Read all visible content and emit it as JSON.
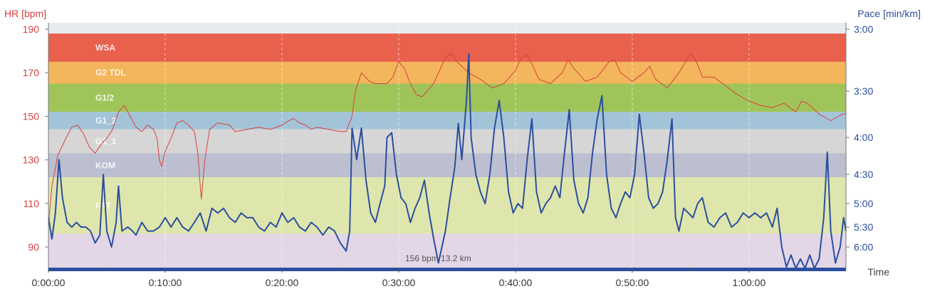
{
  "chart_data": {
    "type": "line",
    "left_axis": {
      "title": "HR [bpm]",
      "ticks": [
        90,
        110,
        130,
        150,
        170,
        190
      ],
      "ylim": [
        80,
        192
      ],
      "color": "#d94040"
    },
    "right_axis": {
      "title": "Pace [min/km]",
      "ticks": [
        {
          "label": "3:00",
          "min_per_km": 3.0
        },
        {
          "label": "3:30",
          "min_per_km": 3.5
        },
        {
          "label": "4:00",
          "min_per_km": 4.0
        },
        {
          "label": "4:30",
          "min_per_km": 4.5
        },
        {
          "label": "5:00",
          "min_per_km": 5.0
        },
        {
          "label": "5:30",
          "min_per_km": 5.5
        },
        {
          "label": "6:00",
          "min_per_km": 6.0
        }
      ],
      "color": "#2b4f9e"
    },
    "x_axis": {
      "title": "Time",
      "ticks": [
        "0:00:00",
        "0:10:00",
        "0:20:00",
        "0:30:00",
        "0:40:00",
        "0:50:00",
        "1:00:00"
      ],
      "xlim_minutes": [
        0,
        68.3
      ],
      "grid": true
    },
    "zones": [
      {
        "name": "WSA",
        "from": 175,
        "to": 188,
        "color": "#e9604c"
      },
      {
        "name": "G2 TDL",
        "from": 165,
        "to": 175,
        "color": "#f3b65c"
      },
      {
        "name": "G1/2",
        "from": 152,
        "to": 165,
        "color": "#9fc55a"
      },
      {
        "name": "G1_2",
        "from": 144,
        "to": 152,
        "color": "#a3c4d8"
      },
      {
        "name": "G1_1",
        "from": 133,
        "to": 144,
        "color": "#d6d6d6"
      },
      {
        "name": "KOM",
        "from": 122,
        "to": 133,
        "color": "#bcbfd0"
      },
      {
        "name": "FAT",
        "from": 96,
        "to": 122,
        "color": "#dfe6ad"
      },
      {
        "name": "",
        "from": 80,
        "to": 96,
        "color": "#e3d6e7"
      }
    ],
    "series": [
      {
        "name": "HR",
        "axis": "left",
        "color": "#d94040",
        "points": [
          [
            0,
            100
          ],
          [
            0.3,
            118
          ],
          [
            0.8,
            132
          ],
          [
            1.5,
            140
          ],
          [
            2,
            145
          ],
          [
            2.5,
            146
          ],
          [
            3,
            142
          ],
          [
            3.5,
            136
          ],
          [
            4,
            133
          ],
          [
            4.5,
            137
          ],
          [
            5,
            140
          ],
          [
            5.5,
            144
          ],
          [
            6,
            152
          ],
          [
            6.5,
            155
          ],
          [
            7,
            150
          ],
          [
            7.5,
            145
          ],
          [
            8,
            143
          ],
          [
            8.5,
            146
          ],
          [
            9,
            144
          ],
          [
            9.3,
            140
          ],
          [
            9.5,
            130
          ],
          [
            9.7,
            127
          ],
          [
            10,
            134
          ],
          [
            10.5,
            140
          ],
          [
            11,
            147
          ],
          [
            11.5,
            148
          ],
          [
            12,
            146
          ],
          [
            12.5,
            143
          ],
          [
            12.8,
            133
          ],
          [
            13,
            118
          ],
          [
            13.1,
            112
          ],
          [
            13.4,
            130
          ],
          [
            13.8,
            144
          ],
          [
            14.5,
            147
          ],
          [
            15.5,
            146
          ],
          [
            16,
            143
          ],
          [
            17,
            144
          ],
          [
            18,
            145
          ],
          [
            19,
            144
          ],
          [
            20,
            146
          ],
          [
            20.6,
            148
          ],
          [
            21,
            149
          ],
          [
            21.5,
            147
          ],
          [
            22,
            146
          ],
          [
            22.5,
            144
          ],
          [
            23,
            145
          ],
          [
            24,
            144
          ],
          [
            25,
            143
          ],
          [
            25.5,
            143
          ],
          [
            26,
            150
          ],
          [
            26.3,
            162
          ],
          [
            26.8,
            170
          ],
          [
            27.5,
            166
          ],
          [
            28,
            165
          ],
          [
            29,
            165
          ],
          [
            29.5,
            168
          ],
          [
            30,
            175
          ],
          [
            30.5,
            172
          ],
          [
            31,
            165
          ],
          [
            31.5,
            160
          ],
          [
            32,
            159
          ],
          [
            33,
            165
          ],
          [
            34,
            177
          ],
          [
            34.5,
            179
          ],
          [
            35,
            175
          ],
          [
            36,
            170
          ],
          [
            37,
            167
          ],
          [
            38,
            163
          ],
          [
            39,
            165
          ],
          [
            40,
            171
          ],
          [
            40.5,
            177
          ],
          [
            41,
            178
          ],
          [
            41.5,
            173
          ],
          [
            42,
            167
          ],
          [
            43,
            165
          ],
          [
            44,
            170
          ],
          [
            44.5,
            176
          ],
          [
            45,
            172
          ],
          [
            46,
            166
          ],
          [
            47,
            168
          ],
          [
            48,
            175
          ],
          [
            48.5,
            176
          ],
          [
            49,
            170
          ],
          [
            50,
            166
          ],
          [
            51,
            170
          ],
          [
            51.5,
            173
          ],
          [
            52,
            167
          ],
          [
            53,
            163
          ],
          [
            54,
            170
          ],
          [
            55,
            179
          ],
          [
            55.5,
            175
          ],
          [
            56,
            168
          ],
          [
            57,
            168
          ],
          [
            58,
            164
          ],
          [
            59,
            160
          ],
          [
            60,
            157
          ],
          [
            61,
            155
          ],
          [
            62,
            154
          ],
          [
            63,
            156
          ],
          [
            64,
            152
          ],
          [
            64.5,
            157
          ],
          [
            65,
            156
          ],
          [
            66,
            151
          ],
          [
            67,
            148
          ],
          [
            68,
            151
          ],
          [
            68.3,
            151
          ]
        ]
      },
      {
        "name": "Pace",
        "axis": "right",
        "color": "#2b4f9e",
        "points": [
          [
            0,
            5.3
          ],
          [
            0.3,
            5.8
          ],
          [
            0.6,
            5.2
          ],
          [
            0.9,
            4.3
          ],
          [
            1.2,
            4.9
          ],
          [
            1.6,
            5.4
          ],
          [
            2.0,
            5.5
          ],
          [
            2.4,
            5.4
          ],
          [
            2.8,
            5.5
          ],
          [
            3.2,
            5.5
          ],
          [
            3.6,
            5.6
          ],
          [
            4.0,
            5.9
          ],
          [
            4.4,
            5.7
          ],
          [
            4.7,
            4.5
          ],
          [
            5.0,
            5.6
          ],
          [
            5.4,
            6.0
          ],
          [
            5.8,
            5.4
          ],
          [
            6.0,
            4.7
          ],
          [
            6.3,
            5.6
          ],
          [
            6.8,
            5.5
          ],
          [
            7.2,
            5.6
          ],
          [
            7.5,
            5.7
          ],
          [
            8.0,
            5.4
          ],
          [
            8.5,
            5.6
          ],
          [
            9.0,
            5.6
          ],
          [
            9.5,
            5.5
          ],
          [
            10.0,
            5.3
          ],
          [
            10.5,
            5.5
          ],
          [
            11.0,
            5.3
          ],
          [
            11.5,
            5.5
          ],
          [
            12.0,
            5.6
          ],
          [
            12.5,
            5.4
          ],
          [
            13.0,
            5.2
          ],
          [
            13.5,
            5.6
          ],
          [
            14.0,
            5.1
          ],
          [
            14.5,
            5.2
          ],
          [
            15.0,
            5.1
          ],
          [
            15.5,
            5.3
          ],
          [
            16.0,
            5.4
          ],
          [
            16.5,
            5.2
          ],
          [
            17.0,
            5.3
          ],
          [
            17.5,
            5.3
          ],
          [
            18.0,
            5.5
          ],
          [
            18.5,
            5.6
          ],
          [
            19.0,
            5.4
          ],
          [
            19.5,
            5.5
          ],
          [
            20.0,
            5.2
          ],
          [
            20.5,
            5.4
          ],
          [
            21.0,
            5.3
          ],
          [
            21.5,
            5.5
          ],
          [
            22.0,
            5.6
          ],
          [
            22.5,
            5.4
          ],
          [
            23.0,
            5.5
          ],
          [
            23.5,
            5.7
          ],
          [
            24.0,
            5.5
          ],
          [
            24.5,
            5.6
          ],
          [
            25.0,
            5.9
          ],
          [
            25.5,
            6.1
          ],
          [
            25.8,
            5.6
          ],
          [
            26.0,
            3.9
          ],
          [
            26.4,
            4.3
          ],
          [
            26.8,
            3.9
          ],
          [
            27.2,
            4.6
          ],
          [
            27.6,
            5.2
          ],
          [
            28.0,
            5.4
          ],
          [
            28.4,
            5.0
          ],
          [
            28.8,
            4.7
          ],
          [
            29.0,
            4.0
          ],
          [
            29.4,
            3.95
          ],
          [
            29.8,
            4.5
          ],
          [
            30.2,
            4.9
          ],
          [
            30.6,
            5.0
          ],
          [
            31.0,
            5.4
          ],
          [
            31.4,
            5.1
          ],
          [
            31.8,
            4.9
          ],
          [
            32.2,
            4.6
          ],
          [
            32.6,
            5.2
          ],
          [
            33.0,
            5.8
          ],
          [
            33.4,
            6.4
          ],
          [
            34.0,
            5.6
          ],
          [
            34.4,
            4.9
          ],
          [
            34.8,
            4.4
          ],
          [
            35.1,
            3.85
          ],
          [
            35.4,
            4.3
          ],
          [
            35.8,
            3.6
          ],
          [
            36.0,
            3.2
          ],
          [
            36.2,
            4.0
          ],
          [
            36.6,
            4.5
          ],
          [
            37.0,
            4.8
          ],
          [
            37.4,
            5.0
          ],
          [
            37.8,
            4.5
          ],
          [
            38.2,
            3.9
          ],
          [
            38.6,
            3.6
          ],
          [
            39.0,
            4.0
          ],
          [
            39.4,
            4.8
          ],
          [
            39.8,
            5.2
          ],
          [
            40.2,
            5.0
          ],
          [
            40.6,
            5.1
          ],
          [
            41.0,
            4.3
          ],
          [
            41.4,
            3.8
          ],
          [
            41.8,
            4.8
          ],
          [
            42.2,
            5.2
          ],
          [
            42.6,
            5.0
          ],
          [
            43.0,
            4.9
          ],
          [
            43.4,
            4.7
          ],
          [
            43.8,
            4.9
          ],
          [
            44.2,
            4.2
          ],
          [
            44.6,
            3.7
          ],
          [
            45.0,
            4.6
          ],
          [
            45.4,
            5.0
          ],
          [
            45.8,
            5.2
          ],
          [
            46.2,
            4.9
          ],
          [
            46.6,
            4.2
          ],
          [
            47.0,
            3.8
          ],
          [
            47.4,
            3.55
          ],
          [
            47.8,
            4.5
          ],
          [
            48.2,
            5.1
          ],
          [
            48.6,
            5.3
          ],
          [
            49.0,
            5.0
          ],
          [
            49.4,
            4.8
          ],
          [
            49.8,
            4.9
          ],
          [
            50.2,
            4.5
          ],
          [
            50.6,
            3.75
          ],
          [
            51.0,
            4.2
          ],
          [
            51.4,
            4.9
          ],
          [
            51.8,
            5.1
          ],
          [
            52.2,
            5.0
          ],
          [
            52.6,
            4.8
          ],
          [
            53.0,
            4.3
          ],
          [
            53.4,
            3.8
          ],
          [
            53.7,
            5.3
          ],
          [
            54.0,
            5.6
          ],
          [
            54.4,
            5.1
          ],
          [
            54.8,
            5.2
          ],
          [
            55.2,
            5.3
          ],
          [
            55.6,
            5.0
          ],
          [
            56.0,
            4.9
          ],
          [
            56.5,
            5.4
          ],
          [
            57.0,
            5.5
          ],
          [
            57.5,
            5.3
          ],
          [
            58.0,
            5.2
          ],
          [
            58.5,
            5.5
          ],
          [
            59.0,
            5.4
          ],
          [
            59.5,
            5.2
          ],
          [
            60.0,
            5.3
          ],
          [
            60.5,
            5.2
          ],
          [
            61.0,
            5.3
          ],
          [
            61.5,
            5.2
          ],
          [
            62.0,
            5.5
          ],
          [
            62.4,
            5.1
          ],
          [
            62.8,
            6.0
          ],
          [
            63.2,
            6.5
          ],
          [
            63.6,
            6.2
          ],
          [
            64.0,
            6.6
          ],
          [
            64.4,
            6.3
          ],
          [
            64.8,
            6.7
          ],
          [
            65.2,
            6.2
          ],
          [
            65.6,
            6.6
          ],
          [
            66.0,
            6.3
          ],
          [
            66.4,
            5.3
          ],
          [
            66.7,
            4.2
          ],
          [
            67.0,
            5.6
          ],
          [
            67.4,
            6.4
          ],
          [
            67.8,
            6.0
          ],
          [
            68.1,
            5.3
          ],
          [
            68.3,
            5.6
          ]
        ]
      }
    ],
    "annotations": [
      {
        "text": "156 bpm 13.2 km"
      }
    ],
    "legend": "none"
  }
}
